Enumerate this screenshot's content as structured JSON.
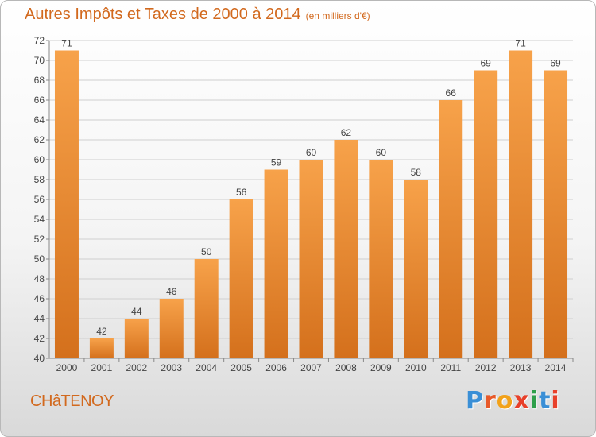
{
  "header": {
    "title": "Autres Impôts et Taxes de 2000 à 2014",
    "subtitle": "(en milliers d'€)"
  },
  "footer": {
    "city": "CHâTENOY",
    "logo_letters": [
      "P",
      "r",
      "o",
      "x",
      "i",
      "t",
      "i"
    ]
  },
  "colors": {
    "title": "#d2691e",
    "bar_top": "#f7a24a",
    "bar_bottom": "#d4701c",
    "grid": "#cfcfcf"
  },
  "chart_data": {
    "type": "bar",
    "title": "Autres Impôts et Taxes de 2000 à 2014",
    "subtitle": "(en milliers d'€)",
    "xlabel": "",
    "ylabel": "",
    "categories": [
      "2000",
      "2001",
      "2002",
      "2003",
      "2004",
      "2005",
      "2006",
      "2007",
      "2008",
      "2009",
      "2010",
      "2011",
      "2012",
      "2013",
      "2014"
    ],
    "values": [
      71,
      42,
      44,
      46,
      50,
      56,
      59,
      60,
      62,
      60,
      58,
      66,
      69,
      71,
      69
    ],
    "ylim": [
      40,
      72
    ],
    "yticks": [
      40,
      42,
      44,
      46,
      48,
      50,
      52,
      54,
      56,
      58,
      60,
      62,
      64,
      66,
      68,
      70,
      72
    ],
    "grid": true,
    "legend": "none"
  }
}
